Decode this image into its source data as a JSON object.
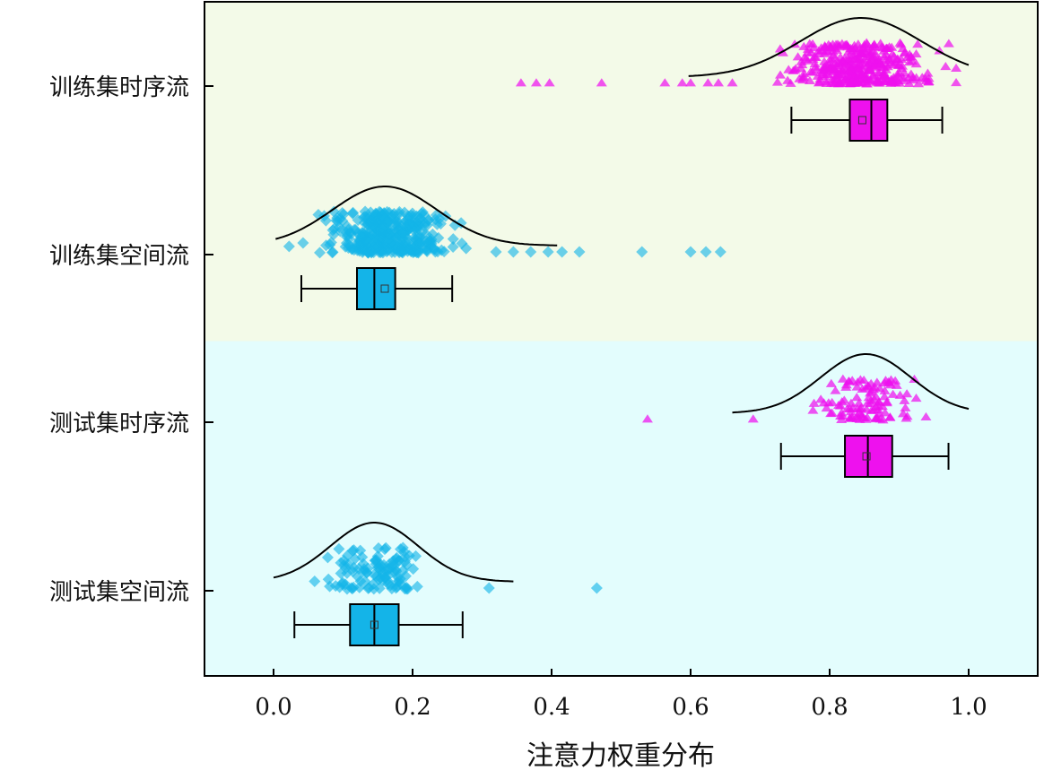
{
  "chart_data": {
    "type": "raincloud",
    "orientation": "horizontal",
    "title": "",
    "xlabel": "注意力权重分布",
    "ylabel": "",
    "xlim": [
      -0.1,
      1.1
    ],
    "x_ticks": [
      "0.0",
      "0.2",
      "0.4",
      "0.6",
      "0.8",
      "1.0"
    ],
    "grid": false,
    "background_bands": [
      {
        "groups": [
          "训练集时序流",
          "训练集空间流"
        ],
        "color": "#f3fae8"
      },
      {
        "groups": [
          "测试集时序流",
          "测试集空间流"
        ],
        "color": "#e3fdfd"
      }
    ],
    "series": [
      {
        "name": "训练集时序流",
        "color": "#ee11ee",
        "marker": "triangle",
        "n_points": 380,
        "box": {
          "whisker_low": 0.745,
          "q1": 0.829,
          "median": 0.86,
          "q3": 0.883,
          "whisker_high": 0.962,
          "mean": 0.847
        },
        "kde": {
          "mean": 0.845,
          "std": 0.087,
          "range": [
            0.597,
            1.0
          ],
          "peak_height": 0.65
        },
        "outliers": [
          0.356,
          0.378,
          0.397,
          0.472,
          0.563,
          0.588,
          0.6,
          0.625,
          0.64,
          0.66
        ]
      },
      {
        "name": "训练集空间流",
        "color": "#14b4e8",
        "marker": "diamond",
        "n_points": 380,
        "box": {
          "whisker_low": 0.04,
          "q1": 0.12,
          "median": 0.145,
          "q3": 0.175,
          "whisker_high": 0.257,
          "mean": 0.16
        },
        "kde": {
          "mean": 0.16,
          "std": 0.075,
          "range": [
            0.003,
            0.408
          ],
          "peak_height": 0.65
        },
        "outliers": [
          0.32,
          0.345,
          0.37,
          0.395,
          0.415,
          0.44,
          0.53,
          0.6,
          0.622,
          0.643
        ]
      },
      {
        "name": "测试集时序流",
        "color": "#ee11ee",
        "marker": "triangle",
        "n_points": 110,
        "box": {
          "whisker_low": 0.73,
          "q1": 0.822,
          "median": 0.855,
          "q3": 0.89,
          "whisker_high": 0.971,
          "mean": 0.853
        },
        "kde": {
          "mean": 0.852,
          "std": 0.065,
          "range": [
            0.66,
            1.0
          ],
          "peak_height": 0.65
        },
        "outliers": [
          0.538,
          0.69
        ]
      },
      {
        "name": "测试集空间流",
        "color": "#14b4e8",
        "marker": "diamond",
        "n_points": 110,
        "box": {
          "whisker_low": 0.03,
          "q1": 0.11,
          "median": 0.145,
          "q3": 0.18,
          "whisker_high": 0.272,
          "mean": 0.145
        },
        "kde": {
          "mean": 0.145,
          "std": 0.063,
          "range": [
            0.0,
            0.345
          ],
          "peak_height": 0.65
        },
        "outliers": [
          0.31,
          0.465
        ]
      }
    ]
  }
}
